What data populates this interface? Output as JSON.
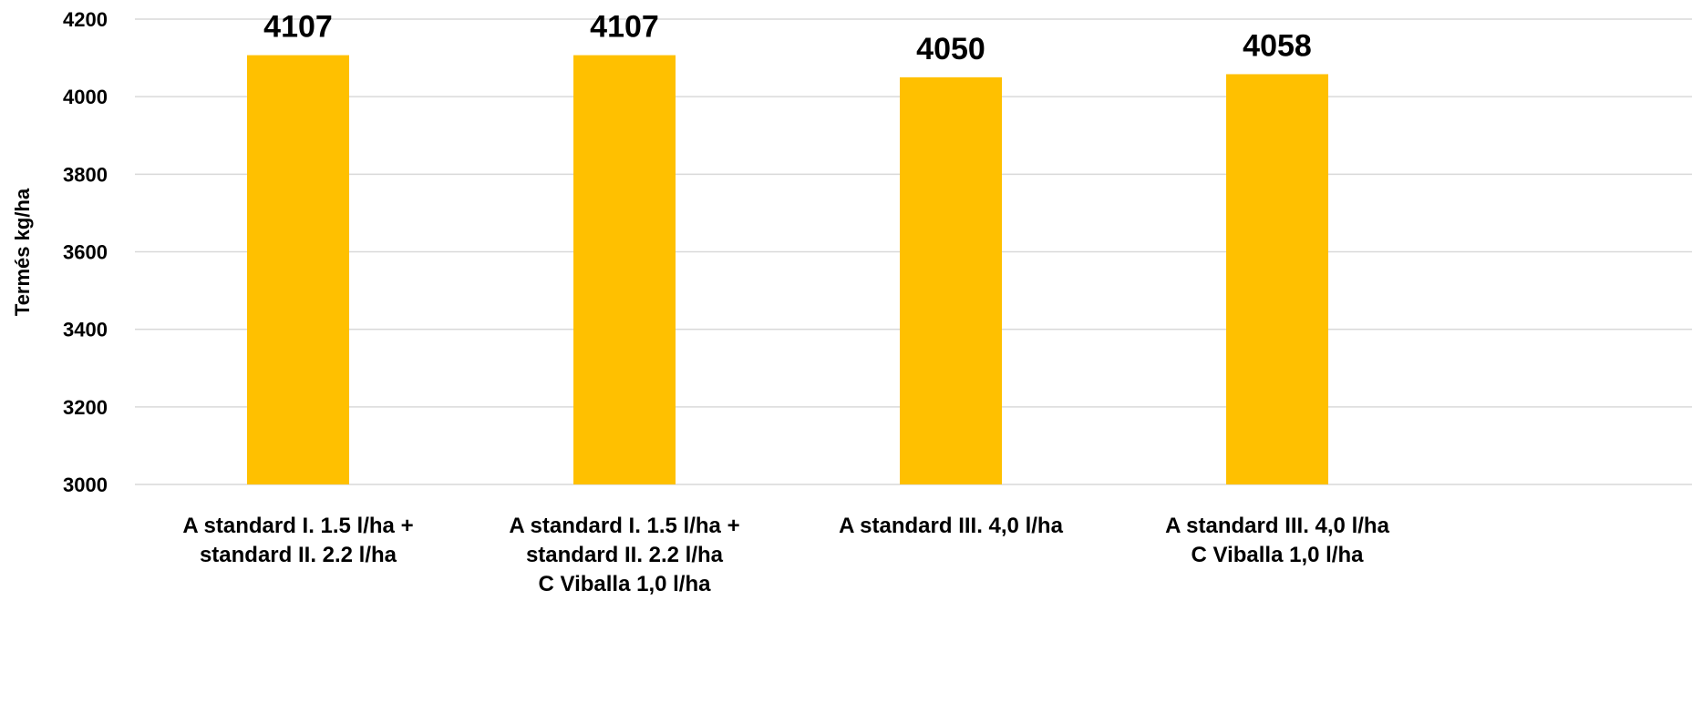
{
  "chart_data": {
    "type": "bar",
    "title": "",
    "xlabel": "",
    "ylabel": "Termés kg/ha",
    "ylim": [
      3000,
      4200
    ],
    "yticks": [
      3000,
      3200,
      3400,
      3600,
      3800,
      4000,
      4200
    ],
    "grid": true,
    "legend": "none",
    "bar_color": "#FFC000",
    "categories": [
      [
        "A standard I. 1.5 l/ha +",
        "standard II. 2.2 l/ha"
      ],
      [
        "A standard I. 1.5 l/ha +",
        "standard II. 2.2 l/ha",
        "C Viballa 1,0 l/ha"
      ],
      [
        "A standard III. 4,0 l/ha"
      ],
      [
        "A standard III. 4,0 l/ha",
        "C Viballa 1,0 l/ha"
      ]
    ],
    "values": [
      4107,
      4107,
      4050,
      4058
    ],
    "data_labels": [
      "4107",
      "4107",
      "4050",
      "4058"
    ]
  }
}
